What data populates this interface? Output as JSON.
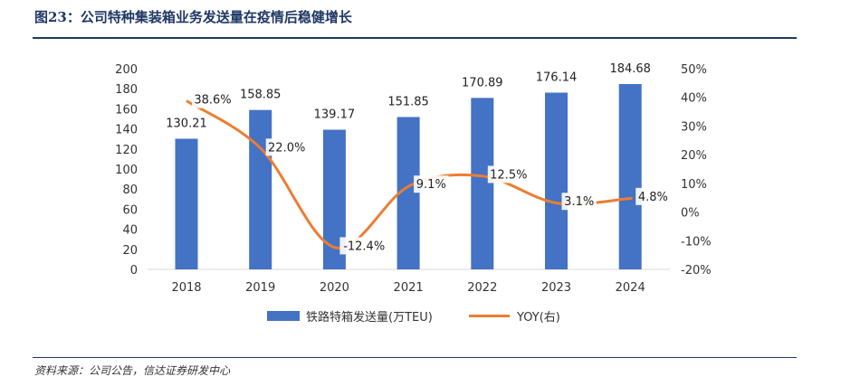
{
  "figure": {
    "title": "图23：公司特种集装箱业务发送量在疫情后稳健增长",
    "source": "资料来源：公司公告，信达证券研发中心"
  },
  "colors": {
    "bar": "#4472c4",
    "line": "#ed7d31",
    "title": "#1f3864"
  },
  "chart_data": {
    "type": "bar",
    "categories": [
      "2018",
      "2019",
      "2020",
      "2021",
      "2022",
      "2023",
      "2024"
    ],
    "series": [
      {
        "name": "铁路特箱发送量(万TEU)",
        "type": "bar",
        "axis": "left",
        "values": [
          130.21,
          158.85,
          139.17,
          151.85,
          170.89,
          176.14,
          184.68
        ],
        "labels": [
          "130.21",
          "158.85",
          "139.17",
          "151.85",
          "170.89",
          "176.14",
          "184.68"
        ]
      },
      {
        "name": "YOY(右)",
        "type": "line",
        "axis": "right",
        "values": [
          38.6,
          22.0,
          -12.4,
          9.1,
          12.5,
          3.1,
          4.8
        ],
        "labels": [
          "38.6%",
          "22.0%",
          "-12.4%",
          "9.1%",
          "12.5%",
          "3.1%",
          "4.8%"
        ]
      }
    ],
    "ylim": [
      0,
      200
    ],
    "y_ticks": [
      "0",
      "20",
      "40",
      "60",
      "80",
      "100",
      "120",
      "140",
      "160",
      "180",
      "200"
    ],
    "y2lim": [
      -20,
      50
    ],
    "y2_ticks": [
      "-20%",
      "-10%",
      "0%",
      "10%",
      "20%",
      "30%",
      "40%",
      "50%"
    ],
    "grid": false,
    "legend_position": "bottom"
  }
}
